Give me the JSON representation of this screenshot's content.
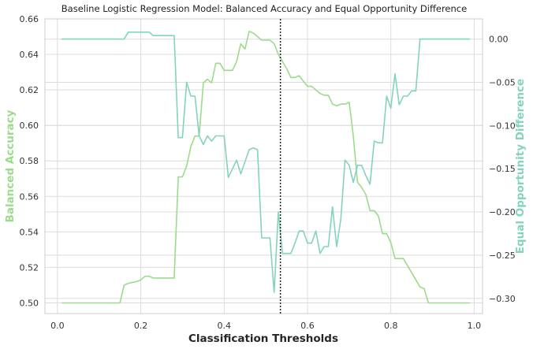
{
  "chart_data": {
    "type": "line",
    "title": "Baseline Logistic Regression Model: Balanced Accuracy and Equal Opportunity Difference",
    "xlabel": "Classification Thresholds",
    "ylabel_left": "Balanced Accuracy",
    "ylabel_right": "Equal Opportunity Difference",
    "xlim": [
      -0.03,
      1.02
    ],
    "ylim_left": [
      0.494,
      0.66
    ],
    "ylim_right": [
      -0.3175,
      0.0233
    ],
    "x_ticks": [
      "0.0",
      "0.2",
      "0.4",
      "0.6",
      "0.8",
      "1.0"
    ],
    "y_left_ticks": [
      "0.50",
      "0.52",
      "0.54",
      "0.56",
      "0.58",
      "0.60",
      "0.62",
      "0.64",
      "0.66"
    ],
    "y_right_ticks": [
      "0.00",
      "−0.05",
      "−0.10",
      "−0.15",
      "−0.20",
      "−0.25",
      "−0.30"
    ],
    "grid": true,
    "threshold_marker_x": 0.535,
    "colors": {
      "balanced_accuracy": "#9bdc8a",
      "equal_opportunity": "#84d3bd",
      "marker": "#222222",
      "grid": "#dcdcdc",
      "axes": "#cccccc"
    },
    "series": [
      {
        "axis": "left",
        "x": [
          0.01,
          0.15,
          0.16,
          0.17,
          0.19,
          0.2,
          0.21,
          0.22,
          0.23,
          0.28,
          0.29,
          0.3,
          0.31,
          0.32,
          0.33,
          0.34,
          0.35,
          0.36,
          0.37,
          0.38,
          0.39,
          0.4,
          0.41,
          0.42,
          0.43,
          0.44,
          0.45,
          0.46,
          0.47,
          0.48,
          0.49,
          0.5,
          0.51,
          0.52,
          0.53,
          0.54,
          0.55,
          0.56,
          0.57,
          0.58,
          0.59,
          0.6,
          0.61,
          0.62,
          0.63,
          0.64,
          0.65,
          0.66,
          0.67,
          0.68,
          0.69,
          0.7,
          0.71,
          0.72,
          0.73,
          0.74,
          0.75,
          0.76,
          0.77,
          0.78,
          0.79,
          0.8,
          0.81,
          0.82,
          0.83,
          0.84,
          0.85,
          0.86,
          0.87,
          0.88,
          0.89,
          0.9,
          0.95,
          0.99
        ],
        "y": [
          0.5,
          0.5,
          0.51,
          0.511,
          0.512,
          0.513,
          0.515,
          0.515,
          0.514,
          0.514,
          0.571,
          0.571,
          0.577,
          0.588,
          0.594,
          0.594,
          0.624,
          0.626,
          0.624,
          0.635,
          0.635,
          0.631,
          0.631,
          0.631,
          0.636,
          0.646,
          0.643,
          0.653,
          0.652,
          0.65,
          0.648,
          0.648,
          0.648,
          0.646,
          0.64,
          0.636,
          0.632,
          0.627,
          0.627,
          0.628,
          0.625,
          0.622,
          0.622,
          0.62,
          0.618,
          0.617,
          0.617,
          0.612,
          0.611,
          0.612,
          0.612,
          0.613,
          0.594,
          0.568,
          0.565,
          0.561,
          0.552,
          0.552,
          0.549,
          0.539,
          0.539,
          0.534,
          0.525,
          0.525,
          0.525,
          0.521,
          0.517,
          0.513,
          0.509,
          0.508,
          0.5,
          0.5,
          0.5,
          0.5
        ]
      },
      {
        "axis": "right",
        "x": [
          0.01,
          0.15,
          0.16,
          0.17,
          0.22,
          0.23,
          0.27,
          0.28,
          0.29,
          0.3,
          0.31,
          0.32,
          0.33,
          0.34,
          0.35,
          0.36,
          0.37,
          0.38,
          0.39,
          0.4,
          0.41,
          0.42,
          0.43,
          0.44,
          0.45,
          0.46,
          0.47,
          0.48,
          0.49,
          0.5,
          0.51,
          0.52,
          0.53,
          0.54,
          0.55,
          0.56,
          0.57,
          0.58,
          0.59,
          0.6,
          0.61,
          0.62,
          0.63,
          0.64,
          0.65,
          0.66,
          0.67,
          0.68,
          0.69,
          0.7,
          0.71,
          0.72,
          0.73,
          0.74,
          0.75,
          0.76,
          0.77,
          0.78,
          0.79,
          0.8,
          0.81,
          0.82,
          0.83,
          0.84,
          0.85,
          0.86,
          0.87,
          0.88,
          0.89,
          0.9,
          0.95,
          0.99
        ],
        "y": [
          0.0,
          0.0,
          0.0,
          0.008,
          0.008,
          0.004,
          0.004,
          0.004,
          -0.114,
          -0.114,
          -0.05,
          -0.066,
          -0.066,
          -0.112,
          -0.122,
          -0.112,
          -0.118,
          -0.112,
          -0.112,
          -0.112,
          -0.16,
          -0.15,
          -0.14,
          -0.156,
          -0.142,
          -0.128,
          -0.126,
          -0.128,
          -0.23,
          -0.23,
          -0.23,
          -0.293,
          -0.2,
          -0.248,
          -0.248,
          -0.248,
          -0.236,
          -0.222,
          -0.222,
          -0.236,
          -0.236,
          -0.222,
          -0.248,
          -0.24,
          -0.24,
          -0.194,
          -0.24,
          -0.208,
          -0.14,
          -0.146,
          -0.166,
          -0.146,
          -0.146,
          -0.158,
          -0.168,
          -0.118,
          -0.12,
          -0.12,
          -0.066,
          -0.08,
          -0.04,
          -0.076,
          -0.066,
          -0.066,
          -0.06,
          -0.06,
          -0.0,
          -0.0,
          0.0,
          0.0,
          0.0,
          0.0
        ]
      }
    ]
  }
}
